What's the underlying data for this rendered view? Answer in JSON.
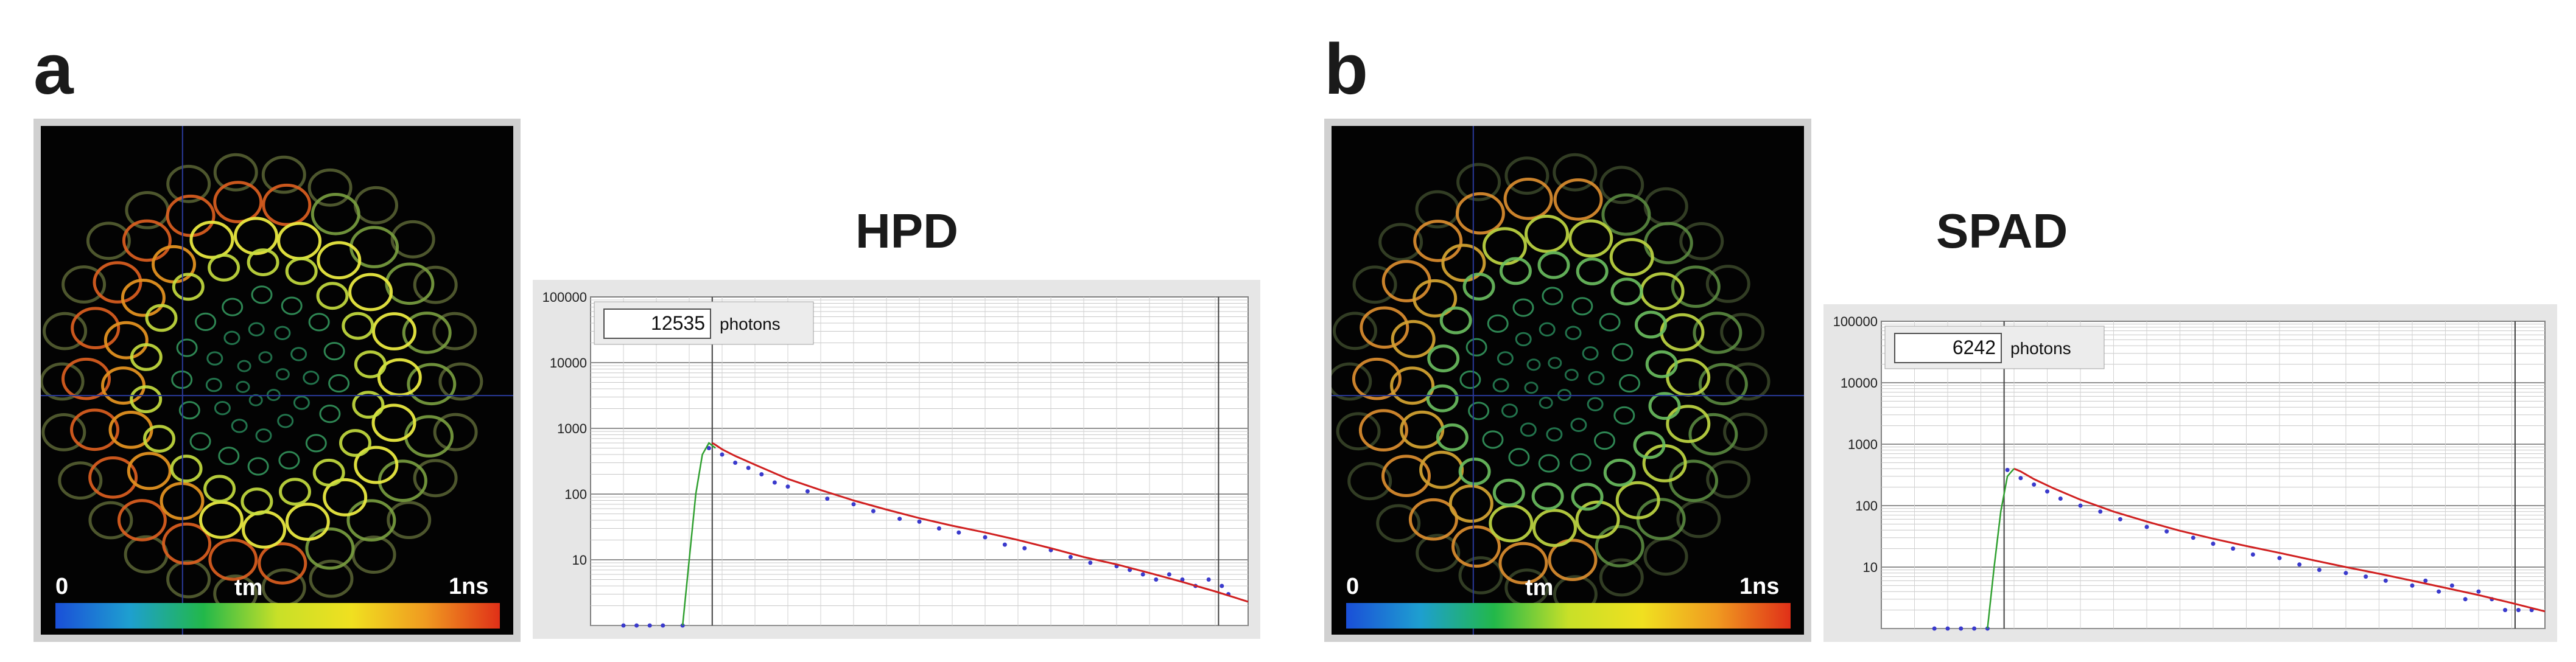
{
  "panels": [
    {
      "letter": "a",
      "image": {
        "colorbar_min": "0",
        "colorbar_label": "tm",
        "colorbar_max": "1ns",
        "colorbar_colors": [
          "#1a4fd8",
          "#1e9fd0",
          "#22b84a",
          "#c8e028",
          "#f0e020",
          "#f09a20",
          "#e03018"
        ],
        "ring_tint": "yellow-green"
      },
      "chart_title": "HPD",
      "counter_value": "12535",
      "counter_unit": "photons"
    },
    {
      "letter": "b",
      "image": {
        "colorbar_min": "0",
        "colorbar_label": "tm",
        "colorbar_max": "1ns",
        "colorbar_colors": [
          "#1a4fd8",
          "#1e9fd0",
          "#22b84a",
          "#c8e028",
          "#f0e020",
          "#f09a20",
          "#e03018"
        ],
        "ring_tint": "green"
      },
      "chart_title": "SPAD",
      "counter_value": "6242",
      "counter_unit": "photons"
    }
  ],
  "chart_data": [
    {
      "type": "scatter",
      "title": "HPD",
      "y_scale": "log",
      "ylim": [
        1,
        100000
      ],
      "y_tick_labels": [
        "100000",
        "10000",
        "1000",
        "100",
        "10"
      ],
      "xlim": [
        0,
        1
      ],
      "grid": true,
      "series": [
        {
          "kind": "points",
          "color": "#3a3acc",
          "x": [
            0.05,
            0.07,
            0.09,
            0.11,
            0.14,
            0.18,
            0.2,
            0.22,
            0.24,
            0.26,
            0.28,
            0.3,
            0.33,
            0.36,
            0.4,
            0.43,
            0.47,
            0.5,
            0.53,
            0.56,
            0.6,
            0.63,
            0.66,
            0.7,
            0.73,
            0.76,
            0.8,
            0.82,
            0.84,
            0.86,
            0.88,
            0.9,
            0.92,
            0.94,
            0.96,
            0.97
          ],
          "y": [
            1,
            1,
            1,
            1,
            1,
            500,
            400,
            300,
            250,
            200,
            150,
            130,
            110,
            85,
            70,
            55,
            42,
            38,
            30,
            26,
            22,
            17,
            15,
            14,
            11,
            9,
            8,
            7,
            6,
            5,
            6,
            5,
            4,
            5,
            4,
            3
          ]
        },
        {
          "kind": "fit",
          "color": "#d02020",
          "x": [
            0.185,
            0.19,
            0.2,
            0.22,
            0.25,
            0.3,
            0.35,
            0.4,
            0.45,
            0.5,
            0.55,
            0.6,
            0.65,
            0.7,
            0.75,
            0.8,
            0.85,
            0.9,
            0.95,
            1.0
          ],
          "y": [
            600,
            560,
            480,
            380,
            280,
            170,
            115,
            80,
            58,
            43,
            33,
            26,
            20,
            15,
            11,
            8.5,
            6.3,
            4.6,
            3.3,
            2.3
          ]
        },
        {
          "kind": "instrument",
          "color": "#30a030",
          "x": [
            0.14,
            0.15,
            0.16,
            0.17,
            0.18,
            0.19
          ],
          "y": [
            1,
            10,
            100,
            400,
            600,
            500
          ]
        }
      ]
    },
    {
      "type": "scatter",
      "title": "SPAD",
      "y_scale": "log",
      "ylim": [
        1,
        100000
      ],
      "y_tick_labels": [
        "100000",
        "10000",
        "1000",
        "100",
        "10"
      ],
      "xlim": [
        0,
        1
      ],
      "grid": true,
      "series": [
        {
          "kind": "points",
          "color": "#3a3acc",
          "x": [
            0.08,
            0.1,
            0.12,
            0.14,
            0.16,
            0.19,
            0.21,
            0.23,
            0.25,
            0.27,
            0.3,
            0.33,
            0.36,
            0.4,
            0.43,
            0.47,
            0.5,
            0.53,
            0.56,
            0.6,
            0.63,
            0.66,
            0.7,
            0.73,
            0.76,
            0.8,
            0.82,
            0.84,
            0.86,
            0.88,
            0.9,
            0.92,
            0.94,
            0.96,
            0.98
          ],
          "y": [
            1,
            1,
            1,
            1,
            1,
            380,
            280,
            220,
            170,
            130,
            100,
            80,
            60,
            45,
            38,
            30,
            24,
            20,
            16,
            14,
            11,
            9,
            8,
            7,
            6,
            5,
            6,
            4,
            5,
            3,
            4,
            3,
            2,
            2,
            2
          ]
        },
        {
          "kind": "fit",
          "color": "#d02020",
          "x": [
            0.2,
            0.21,
            0.23,
            0.26,
            0.3,
            0.35,
            0.4,
            0.45,
            0.5,
            0.55,
            0.6,
            0.65,
            0.7,
            0.75,
            0.8,
            0.85,
            0.9,
            0.95,
            1.0
          ],
          "y": [
            400,
            360,
            270,
            190,
            125,
            80,
            55,
            39,
            29,
            22,
            17,
            13,
            10,
            7.8,
            6,
            4.6,
            3.5,
            2.6,
            1.9
          ]
        },
        {
          "kind": "instrument",
          "color": "#30a030",
          "x": [
            0.16,
            0.17,
            0.18,
            0.19,
            0.2
          ],
          "y": [
            1,
            10,
            80,
            300,
            400
          ]
        }
      ]
    }
  ]
}
